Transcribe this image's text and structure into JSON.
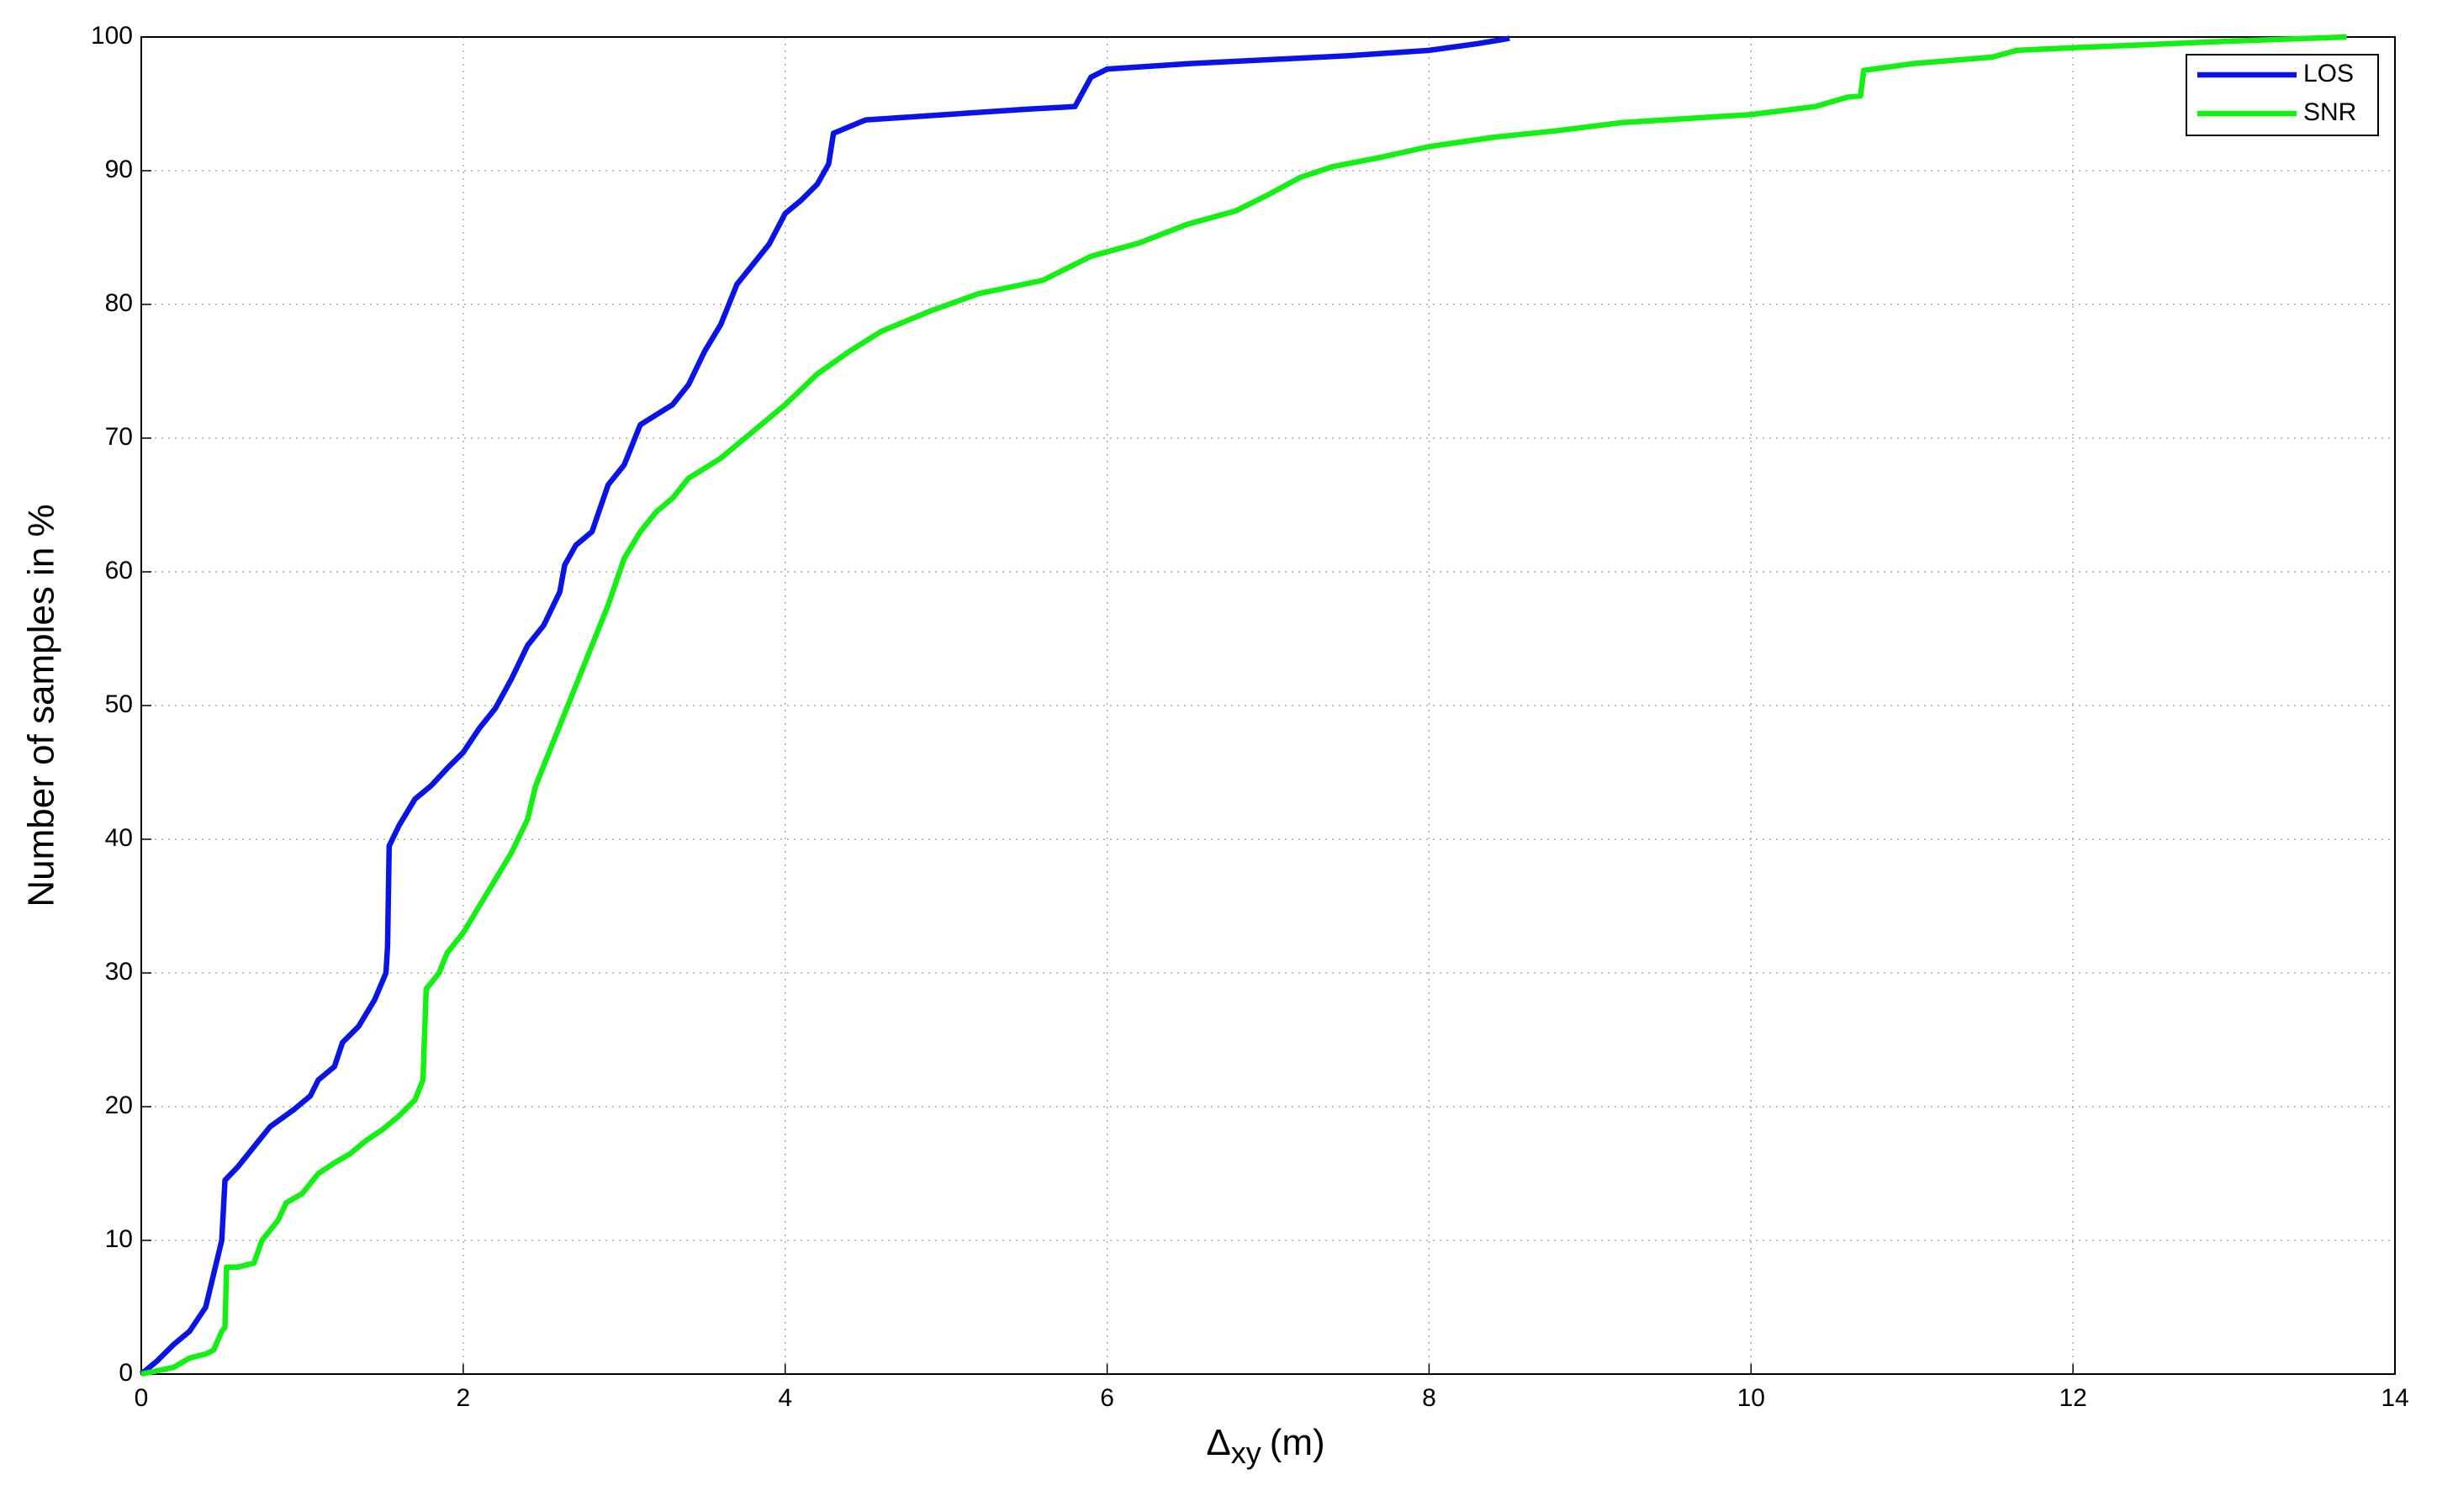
{
  "chart_data": {
    "type": "line",
    "xlabel": {
      "symbol": "Δ",
      "subscript": "xy",
      "unit": "(m)"
    },
    "ylabel": "Number of samples in %",
    "xlim": [
      0,
      14
    ],
    "xticks": [
      0,
      2,
      4,
      6,
      8,
      10,
      12,
      14
    ],
    "ylim": [
      0,
      100
    ],
    "yticks": [
      0,
      10,
      20,
      30,
      40,
      50,
      60,
      70,
      80,
      90,
      100
    ],
    "grid": true,
    "legend": "upper right",
    "series": [
      {
        "name": "LOS",
        "color": "#0a14e6",
        "x": [
          0,
          0.1,
          0.2,
          0.3,
          0.4,
          0.45,
          0.5,
          0.52,
          0.6,
          0.7,
          0.8,
          0.95,
          1.05,
          1.1,
          1.2,
          1.25,
          1.35,
          1.45,
          1.52,
          1.53,
          1.54,
          1.6,
          1.7,
          1.8,
          1.9,
          2.0,
          2.1,
          2.2,
          2.3,
          2.4,
          2.5,
          2.6,
          2.63,
          2.7,
          2.8,
          2.9,
          3.0,
          3.1,
          3.3,
          3.4,
          3.5,
          3.6,
          3.7,
          3.8,
          3.9,
          4.0,
          4.1,
          4.2,
          4.27,
          4.3,
          4.5,
          5.0,
          5.5,
          5.8,
          5.9,
          6.0,
          6.5,
          7.0,
          7.5,
          8.0,
          8.3,
          8.5
        ],
        "values": [
          0,
          1,
          2.2,
          3.2,
          5,
          7.5,
          10,
          14.5,
          15.5,
          17,
          18.5,
          19.8,
          20.8,
          22,
          23,
          24.8,
          26,
          28,
          30,
          32,
          39.5,
          41,
          43,
          44,
          45.3,
          46.5,
          48.3,
          49.8,
          52,
          54.5,
          56,
          58.5,
          60.5,
          62,
          63,
          66.5,
          68,
          71,
          72.5,
          74,
          76.5,
          78.5,
          81.5,
          83,
          84.5,
          86.8,
          87.8,
          89,
          90.5,
          92.8,
          93.8,
          94.2,
          94.6,
          94.8,
          97,
          97.6,
          98,
          98.3,
          98.6,
          99,
          99.5,
          99.9
        ]
      },
      {
        "name": "SNR",
        "color": "#14f014",
        "x": [
          0,
          0.2,
          0.3,
          0.4,
          0.45,
          0.5,
          0.52,
          0.53,
          0.6,
          0.7,
          0.75,
          0.85,
          0.9,
          1.0,
          1.1,
          1.2,
          1.3,
          1.4,
          1.5,
          1.6,
          1.7,
          1.75,
          1.77,
          1.85,
          1.9,
          2.0,
          2.1,
          2.2,
          2.3,
          2.4,
          2.45,
          2.5,
          2.6,
          2.7,
          2.8,
          2.9,
          3.0,
          3.1,
          3.2,
          3.3,
          3.4,
          3.6,
          3.8,
          4.0,
          4.2,
          4.4,
          4.6,
          4.9,
          5.2,
          5.6,
          5.8,
          5.9,
          6.2,
          6.5,
          6.8,
          7.0,
          7.2,
          7.4,
          7.7,
          8.0,
          8.4,
          8.8,
          9.2,
          9.6,
          10.0,
          10.4,
          10.6,
          10.68,
          10.7,
          11.0,
          11.5,
          11.65,
          12.0,
          13.0,
          13.7
        ],
        "values": [
          0,
          0.5,
          1.2,
          1.5,
          1.8,
          3.2,
          3.5,
          8,
          8,
          8.3,
          10,
          11.5,
          12.8,
          13.5,
          15,
          15.8,
          16.5,
          17.5,
          18.3,
          19.3,
          20.5,
          22,
          28.8,
          30,
          31.5,
          33,
          35,
          37,
          39,
          41.5,
          44,
          45.5,
          48.5,
          51.5,
          54.5,
          57.5,
          61,
          63,
          64.5,
          65.5,
          67,
          68.5,
          70.5,
          72.5,
          74.8,
          76.5,
          78,
          79.5,
          80.8,
          81.8,
          83,
          83.6,
          84.6,
          86,
          87,
          88.2,
          89.5,
          90.3,
          91,
          91.8,
          92.5,
          93,
          93.6,
          93.9,
          94.2,
          94.8,
          95.5,
          95.6,
          97.5,
          98,
          98.5,
          99,
          99.2,
          99.7,
          100
        ]
      }
    ]
  }
}
